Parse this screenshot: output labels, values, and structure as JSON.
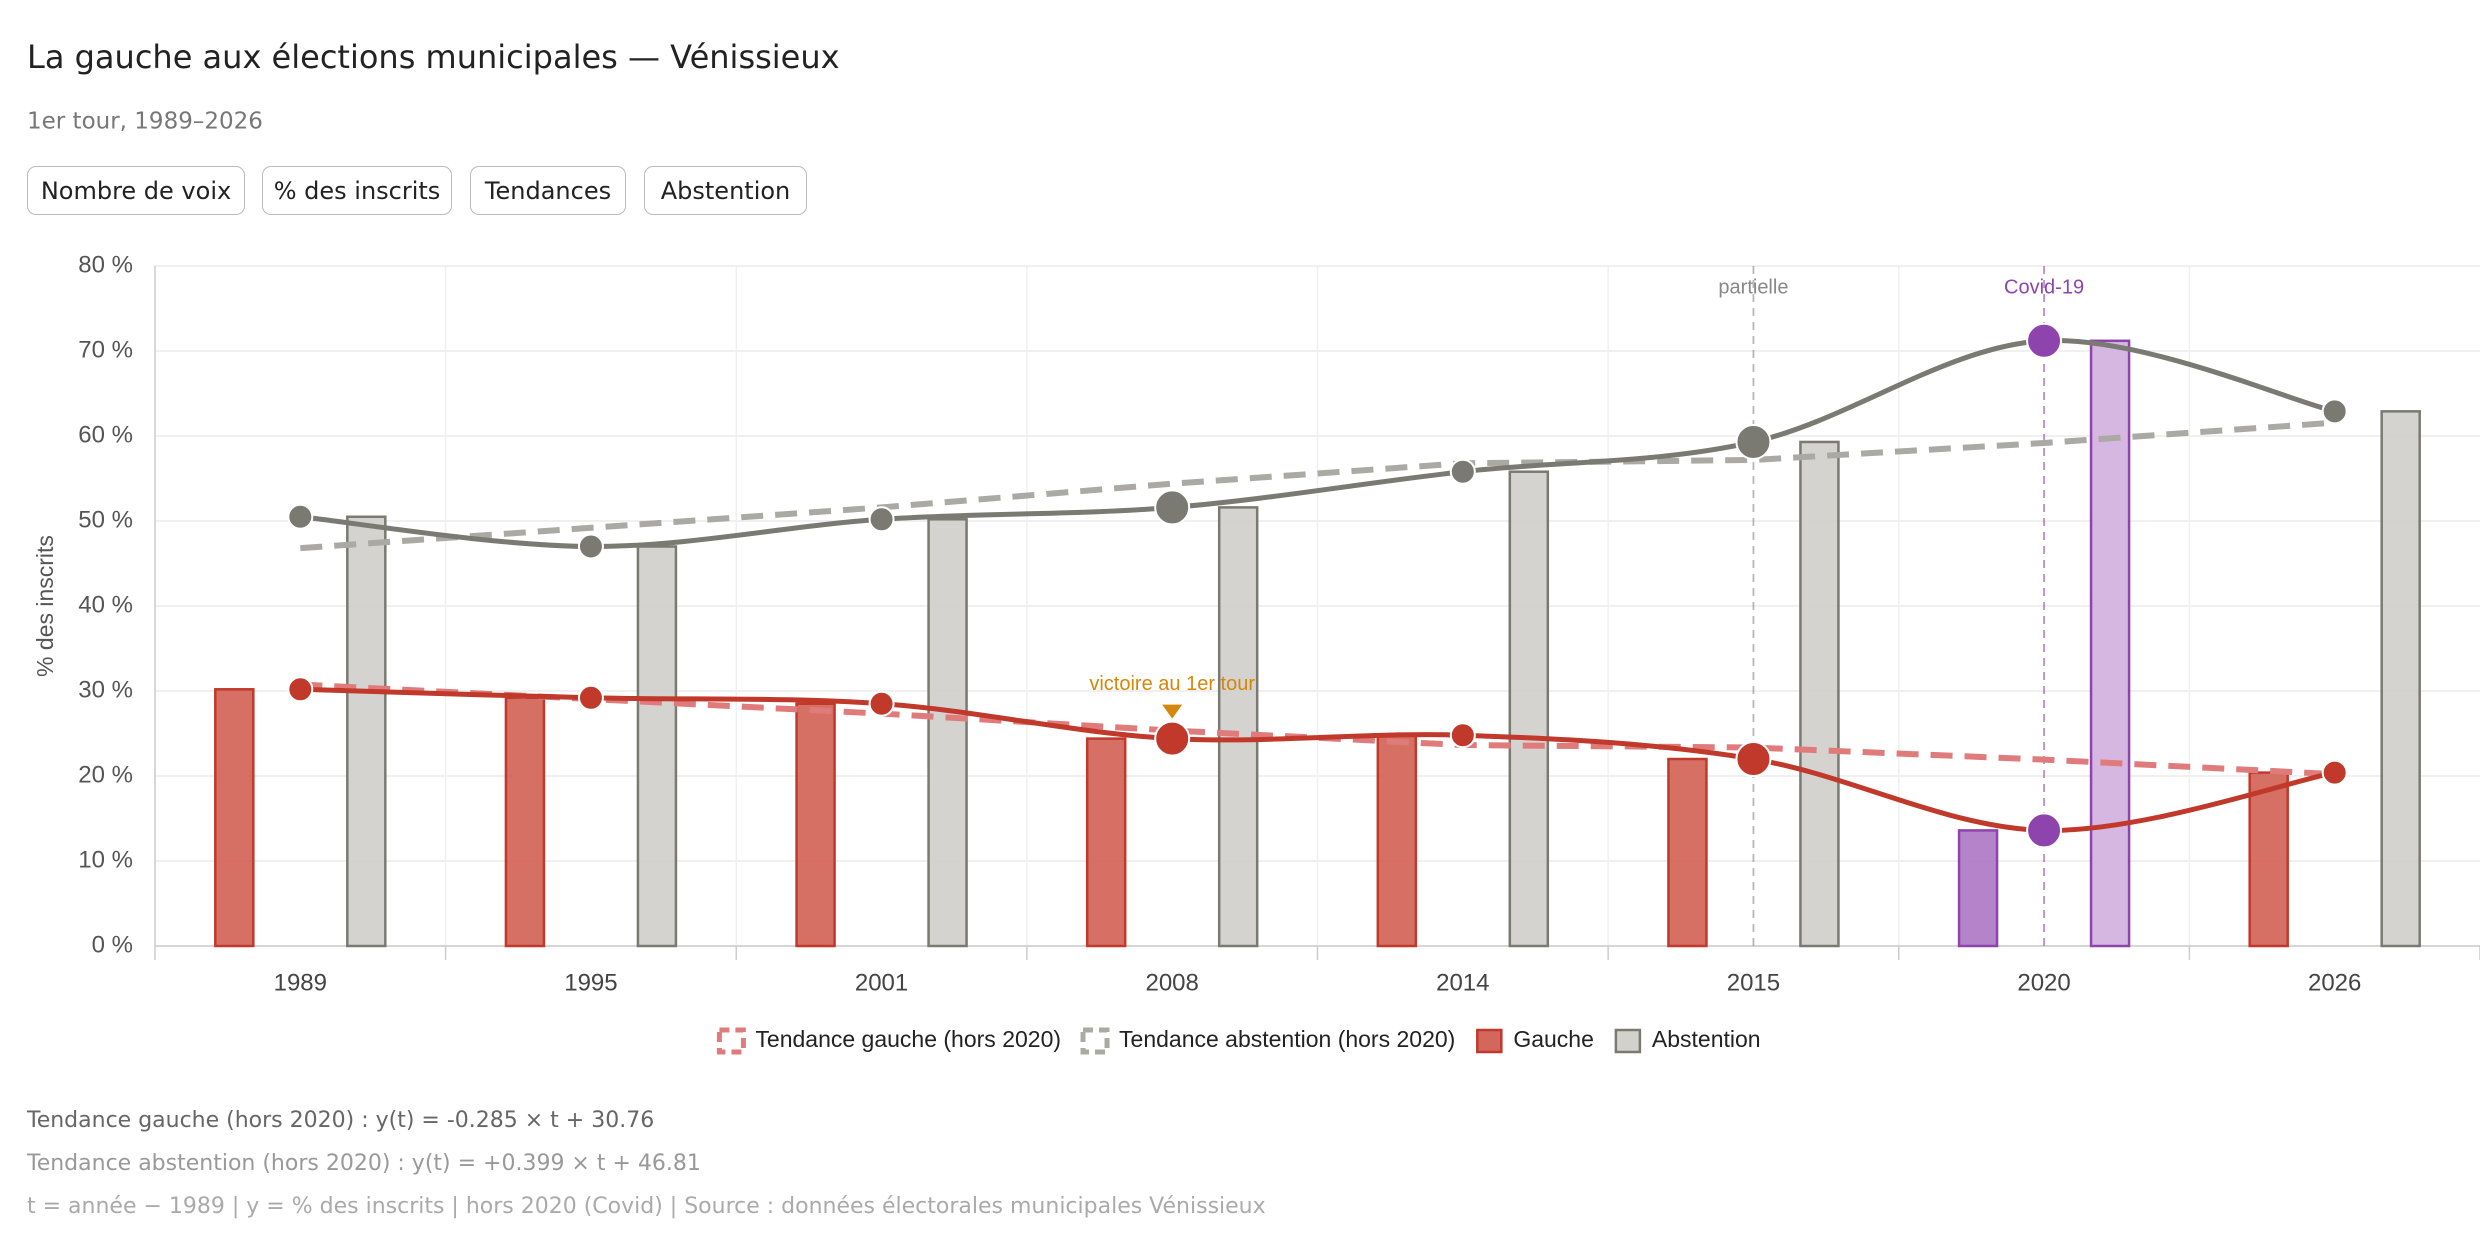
{
  "header": {
    "title": "La gauche aux élections municipales — Vénissieux",
    "subtitle": "1er tour, 1989–2026"
  },
  "buttons": [
    "Nombre de voix",
    "% des inscrits",
    "Tendances",
    "Abstention"
  ],
  "chart_data": {
    "type": "bar-line",
    "y_label": "% des inscrits",
    "categories": [
      "1989",
      "1995",
      "2001",
      "2008",
      "2014",
      "2015",
      "2020",
      "2026"
    ],
    "ylim": [
      0,
      80
    ],
    "yticks": [
      {
        "value": 0,
        "label": "0 %"
      },
      {
        "value": 10,
        "label": "10 %"
      },
      {
        "value": 20,
        "label": "20 %"
      },
      {
        "value": 30,
        "label": "30 %"
      },
      {
        "value": 40,
        "label": "40 %"
      },
      {
        "value": 50,
        "label": "50 %"
      },
      {
        "value": 60,
        "label": "60 %"
      },
      {
        "value": 70,
        "label": "70 %"
      },
      {
        "value": 80,
        "label": "80 %"
      }
    ],
    "grid": true,
    "series": [
      {
        "name": "Tendance gauche (hors 2020)",
        "kind": "trend",
        "color": "#e07b7b",
        "values": [
          30.76,
          29.05,
          27.34,
          25.35,
          23.64,
          23.35,
          21.93,
          20.22
        ]
      },
      {
        "name": "Tendance abstention (hors 2020)",
        "kind": "trend",
        "color": "#aaa9a3",
        "values": [
          46.81,
          49.2,
          51.6,
          54.39,
          56.79,
          57.18,
          59.18,
          61.57
        ]
      },
      {
        "name": "Gauche",
        "kind": "bar-line",
        "offset": "left",
        "color": "#c0392b",
        "bar_fill": "#d4675c",
        "bar_colors": [
          "#d4675c",
          "#d4675c",
          "#d4675c",
          "#d4675c",
          "#d4675c",
          "#d4675c",
          "#b07cc6",
          "#d4675c"
        ],
        "point_colors": [
          "#c0392b",
          "#c0392b",
          "#c0392b",
          "#c0392b",
          "#c0392b",
          "#c0392b",
          "#8e44ad",
          "#c0392b"
        ],
        "values": [
          30.2,
          29.2,
          28.5,
          24.4,
          24.8,
          22.0,
          13.6,
          20.4
        ]
      },
      {
        "name": "Abstention",
        "kind": "bar-line",
        "offset": "right",
        "color": "#7a7a72",
        "bar_fill": "#d3d1cc",
        "bar_colors": [
          "#d3d1cc",
          "#d3d1cc",
          "#d3d1cc",
          "#d3d1cc",
          "#d3d1cc",
          "#d3d1cc",
          "#d4b3e0",
          "#d3d1cc"
        ],
        "point_colors": [
          "#7a7a72",
          "#7a7a72",
          "#7a7a72",
          "#7a7a72",
          "#7a7a72",
          "#7a7a72",
          "#8e44ad",
          "#7a7a72"
        ],
        "values": [
          50.5,
          47.0,
          50.2,
          51.6,
          55.8,
          59.3,
          71.2,
          62.9
        ]
      }
    ],
    "annotations": [
      {
        "text": "partielle",
        "x": "2015",
        "color": "#888888",
        "style": "vline"
      },
      {
        "text": "Covid-19",
        "x": "2020",
        "color": "#8e44ad",
        "style": "vline"
      },
      {
        "text": "victoire au 1er tour",
        "x": "2008",
        "color": "#d4870a",
        "style": "arrow"
      }
    ]
  },
  "footer": [
    "Tendance gauche (hors 2020) : y(t) = -0.285 × t + 30.76",
    "Tendance abstention (hors 2020) : y(t) = +0.399 × t + 46.81",
    "t = année − 1989  |  y = % des inscrits  |  hors 2020 (Covid)  |  Source : données électorales municipales Vénissieux"
  ]
}
